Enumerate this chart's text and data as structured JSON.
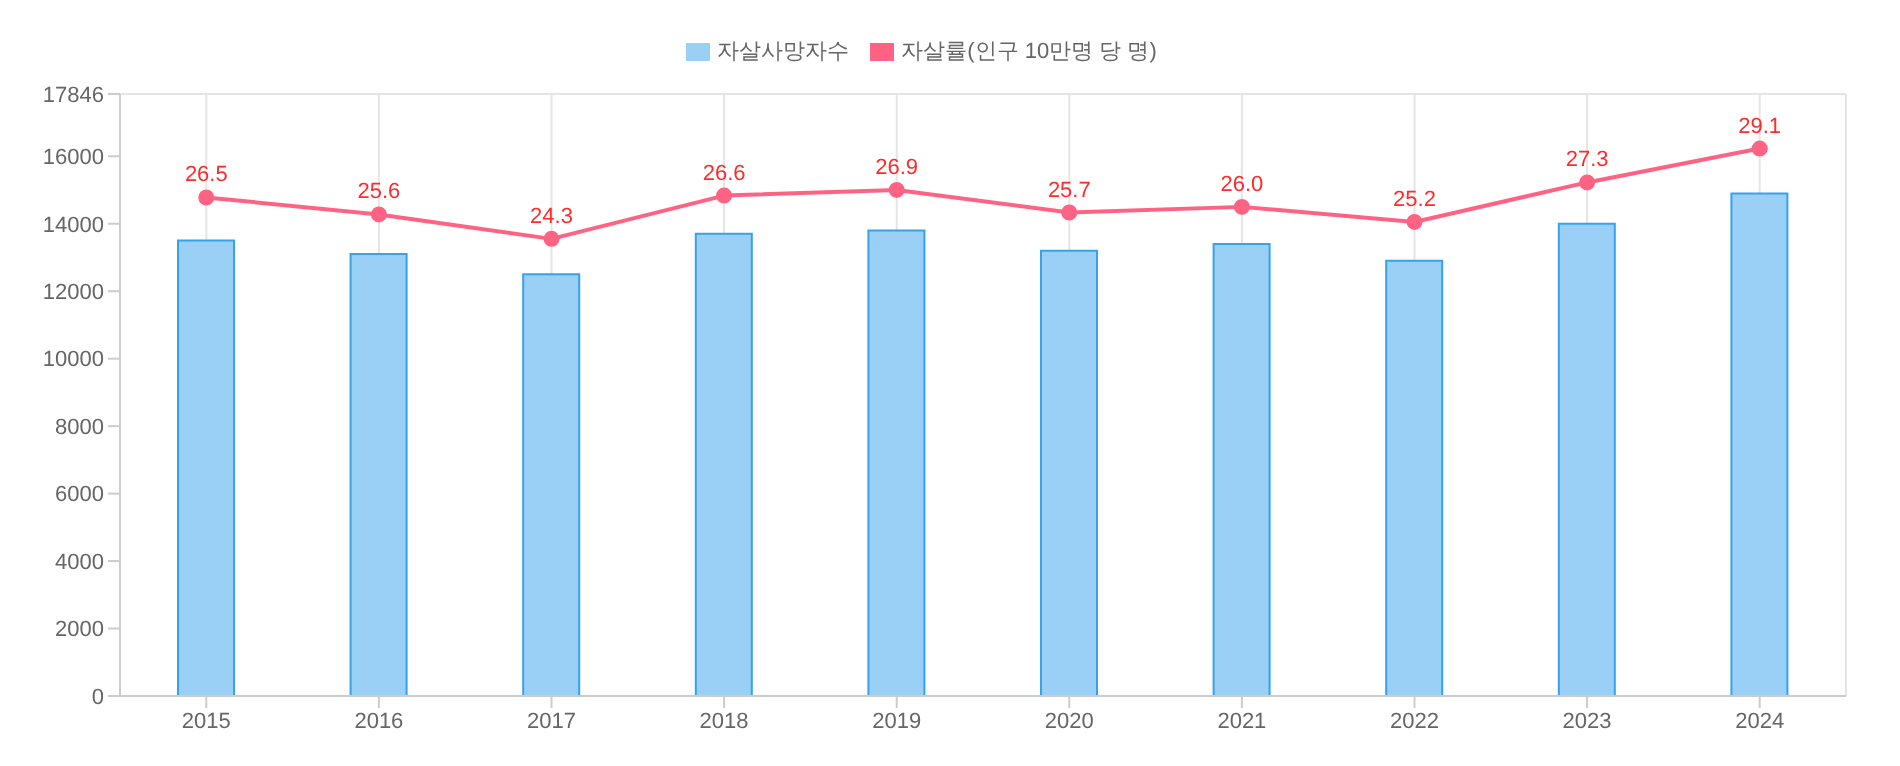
{
  "chart_data": {
    "type": "bar",
    "categories": [
      "2015",
      "2016",
      "2017",
      "2018",
      "2019",
      "2020",
      "2021",
      "2022",
      "2023",
      "2024"
    ],
    "series": [
      {
        "name": "자살사망자수",
        "color": "#9ad0f5",
        "values": [
          13500,
          13100,
          12500,
          13700,
          13800,
          13200,
          13400,
          12900,
          14000,
          14900
        ]
      },
      {
        "name": "자살률(인구 10만명 당 명)",
        "type": "line",
        "axis": "y2",
        "color": "#ff6384",
        "values": [
          26.5,
          25.6,
          24.3,
          26.6,
          26.9,
          25.7,
          26.0,
          25.2,
          27.3,
          29.1
        ],
        "value_labels": [
          "26.5",
          "25.6",
          "24.3",
          "26.6",
          "26.9",
          "25.7",
          "26.0",
          "25.2",
          "27.3",
          "29.1"
        ]
      }
    ],
    "ylim": [
      0,
      17846
    ],
    "yticks": [
      0,
      2000,
      4000,
      6000,
      8000,
      10000,
      12000,
      14000,
      16000,
      17846
    ],
    "grid": true,
    "legend": "top",
    "marker": "circle"
  }
}
